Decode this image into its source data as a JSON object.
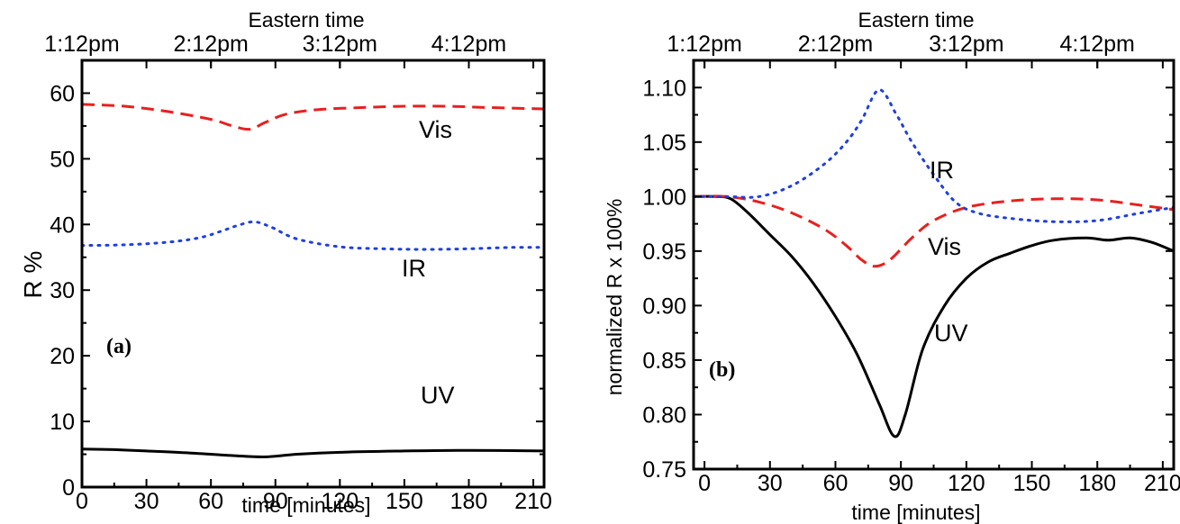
{
  "chart_data": [
    {
      "type": "line",
      "panel_label": "(a)",
      "top_axis_title": "Eastern time",
      "top_ticks": [
        {
          "x": 0,
          "label": "1:12pm"
        },
        {
          "x": 60,
          "label": "2:12pm"
        },
        {
          "x": 120,
          "label": "3:12pm"
        },
        {
          "x": 180,
          "label": "4:12pm"
        }
      ],
      "xlabel": "time [minutes]",
      "ylabel": "R %",
      "xlim": [
        0,
        215
      ],
      "ylim": [
        0,
        65
      ],
      "xticks": [
        0,
        30,
        60,
        90,
        120,
        150,
        180,
        210
      ],
      "yticks": [
        0,
        10,
        20,
        30,
        40,
        50,
        60
      ],
      "series": [
        {
          "name": "Vis",
          "color": "#e8201f",
          "dash": "dashed",
          "x": [
            0,
            20,
            40,
            60,
            70,
            78,
            85,
            95,
            110,
            130,
            150,
            170,
            190,
            215
          ],
          "y": [
            58.3,
            58.0,
            57.2,
            56.0,
            55.0,
            54.5,
            55.5,
            56.8,
            57.5,
            57.8,
            58.0,
            58.0,
            57.8,
            57.6
          ]
        },
        {
          "name": "IR",
          "color": "#1f3fe0",
          "dash": "dotted",
          "x": [
            0,
            20,
            40,
            55,
            65,
            72,
            80,
            88,
            100,
            120,
            140,
            160,
            180,
            200,
            215
          ],
          "y": [
            36.8,
            36.9,
            37.3,
            38.0,
            39.0,
            39.8,
            40.4,
            39.6,
            37.8,
            36.6,
            36.3,
            36.2,
            36.3,
            36.5,
            36.5
          ]
        },
        {
          "name": "UV",
          "color": "#000000",
          "dash": "solid",
          "x": [
            0,
            15,
            30,
            50,
            70,
            85,
            100,
            120,
            150,
            180,
            215
          ],
          "y": [
            5.8,
            5.7,
            5.5,
            5.2,
            4.8,
            4.6,
            5.0,
            5.3,
            5.5,
            5.6,
            5.5
          ]
        }
      ]
    },
    {
      "type": "line",
      "panel_label": "(b)",
      "top_axis_title": "Eastern time",
      "top_ticks": [
        {
          "x": 0,
          "label": "1:12pm"
        },
        {
          "x": 60,
          "label": "2:12pm"
        },
        {
          "x": 120,
          "label": "3:12pm"
        },
        {
          "x": 180,
          "label": "4:12pm"
        }
      ],
      "xlabel": "time [minutes]",
      "ylabel": "normalized R x 100%",
      "xlim": [
        -5,
        215
      ],
      "ylim": [
        0.75,
        1.125
      ],
      "xticks": [
        0,
        30,
        60,
        90,
        120,
        150,
        180,
        210
      ],
      "yticks": [
        "0.75",
        "0.80",
        "0.85",
        "0.90",
        "0.95",
        "1.00",
        "1.05",
        "1.10"
      ],
      "series": [
        {
          "name": "IR",
          "color": "#1f3fe0",
          "dash": "dotted",
          "x": [
            -5,
            10,
            25,
            40,
            55,
            65,
            72,
            80,
            88,
            95,
            105,
            115,
            125,
            140,
            160,
            180,
            200,
            215
          ],
          "y": [
            1.0,
            1.0,
            1.0,
            1.01,
            1.03,
            1.05,
            1.07,
            1.098,
            1.075,
            1.05,
            1.02,
            0.995,
            0.985,
            0.98,
            0.977,
            0.978,
            0.985,
            0.99
          ]
        },
        {
          "name": "Vis",
          "color": "#e8201f",
          "dash": "dashed",
          "x": [
            -5,
            10,
            25,
            40,
            55,
            65,
            72,
            78,
            85,
            95,
            105,
            120,
            140,
            160,
            180,
            200,
            215
          ],
          "y": [
            1.0,
            1.0,
            0.995,
            0.985,
            0.97,
            0.955,
            0.942,
            0.936,
            0.942,
            0.962,
            0.978,
            0.99,
            0.996,
            0.998,
            0.997,
            0.992,
            0.988
          ]
        },
        {
          "name": "UV",
          "color": "#000000",
          "dash": "solid",
          "x": [
            -5,
            5,
            12,
            20,
            30,
            40,
            50,
            60,
            70,
            80,
            87,
            92,
            100,
            110,
            120,
            130,
            140,
            150,
            160,
            175,
            185,
            195,
            205,
            215
          ],
          "y": [
            1.0,
            1.0,
            0.998,
            0.985,
            0.965,
            0.945,
            0.92,
            0.89,
            0.855,
            0.81,
            0.78,
            0.8,
            0.86,
            0.9,
            0.925,
            0.94,
            0.948,
            0.955,
            0.96,
            0.962,
            0.96,
            0.962,
            0.958,
            0.95
          ]
        }
      ]
    }
  ]
}
